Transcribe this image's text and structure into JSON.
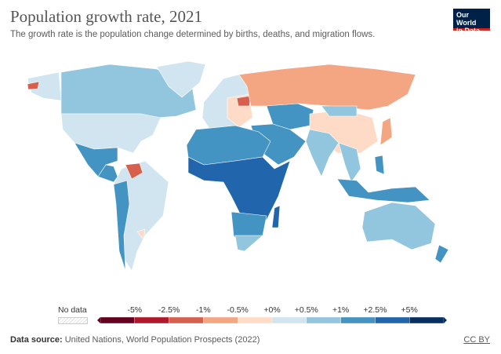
{
  "header": {
    "title": "Population growth rate, 2021",
    "subtitle": "The growth rate is the population change determined by births, deaths, and migration flows.",
    "logo_text": "Our World in Data"
  },
  "legend": {
    "no_data_label": "No data",
    "labels": [
      "-5%",
      "-2.5%",
      "-1%",
      "-0.5%",
      "+0%",
      "+0.5%",
      "+1%",
      "+2.5%",
      "+5%"
    ],
    "colors": [
      "#67001f",
      "#b2182b",
      "#d6604d",
      "#f4a582",
      "#fddbc7",
      "#d1e5f0",
      "#92c5de",
      "#4393c3",
      "#2166ac",
      "#053061"
    ]
  },
  "footer": {
    "source_label": "Data source:",
    "source_text": "United Nations, World Population Prospects (2022)",
    "license": "CC BY"
  }
}
